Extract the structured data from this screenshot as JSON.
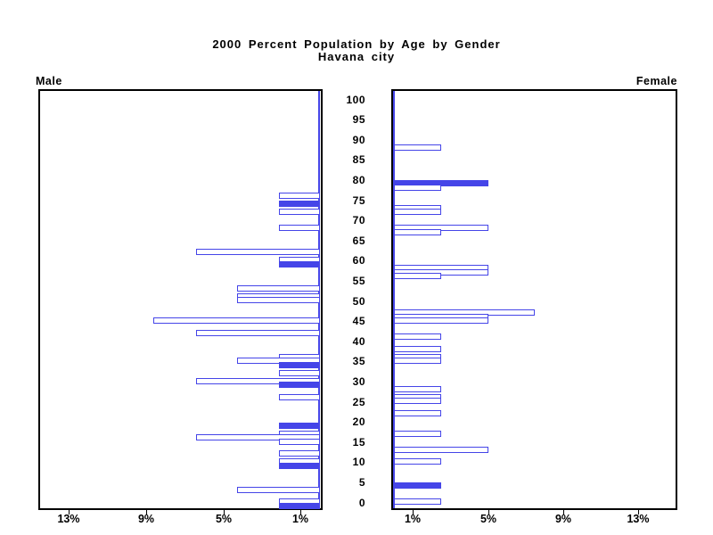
{
  "chart_data": {
    "type": "bar",
    "variant": "population-pyramid",
    "title": "2000 Percent Population by Age by Gender",
    "subtitle": "Havana city",
    "left_panel_label": "Male",
    "right_panel_label": "Female",
    "legend_position": "none",
    "grid": false,
    "colors": {
      "bar_blue": "#4545E8",
      "frame_black": "#000000",
      "background": "#FFFFFF"
    },
    "pct_axis": {
      "unit": "%",
      "xlim": [
        0,
        15
      ],
      "tick_values": [
        1,
        5,
        9,
        13
      ],
      "tick_labels": [
        "1%",
        "5%",
        "9%",
        "13%"
      ],
      "male_direction": "right-to-left",
      "female_direction": "left-to-right"
    },
    "age_axis": {
      "min": 0,
      "max": 100,
      "step": 5,
      "tick_labels": [
        "100",
        "95",
        "90",
        "85",
        "80",
        "75",
        "70",
        "65",
        "60",
        "55",
        "50",
        "45",
        "40",
        "35",
        "30",
        "25",
        "20",
        "15",
        "10",
        "5",
        "0"
      ]
    },
    "male_bars": [
      {
        "age": 77,
        "pct": 2.1,
        "solid": false
      },
      {
        "age": 75,
        "pct": 2.1,
        "solid": true
      },
      {
        "age": 73,
        "pct": 2.1,
        "solid": false
      },
      {
        "age": 69,
        "pct": 2.1,
        "solid": false
      },
      {
        "age": 63,
        "pct": 6.4,
        "solid": false
      },
      {
        "age": 61,
        "pct": 2.1,
        "solid": false
      },
      {
        "age": 60,
        "pct": 2.1,
        "solid": true
      },
      {
        "age": 54,
        "pct": 4.3,
        "solid": false
      },
      {
        "age": 52,
        "pct": 4.3,
        "solid": false
      },
      {
        "age": 51,
        "pct": 4.3,
        "solid": false
      },
      {
        "age": 46,
        "pct": 8.6,
        "solid": false
      },
      {
        "age": 43,
        "pct": 6.4,
        "solid": false
      },
      {
        "age": 37,
        "pct": 2.1,
        "solid": false
      },
      {
        "age": 36,
        "pct": 4.3,
        "solid": false
      },
      {
        "age": 35,
        "pct": 2.1,
        "solid": true
      },
      {
        "age": 33,
        "pct": 2.1,
        "solid": false
      },
      {
        "age": 31,
        "pct": 6.4,
        "solid": false
      },
      {
        "age": 30,
        "pct": 2.1,
        "solid": true
      },
      {
        "age": 27,
        "pct": 2.1,
        "solid": false
      },
      {
        "age": 20,
        "pct": 2.1,
        "solid": true
      },
      {
        "age": 18,
        "pct": 2.1,
        "solid": false
      },
      {
        "age": 17,
        "pct": 6.4,
        "solid": false
      },
      {
        "age": 16,
        "pct": 2.1,
        "solid": false
      },
      {
        "age": 13,
        "pct": 2.1,
        "solid": false
      },
      {
        "age": 11,
        "pct": 2.1,
        "solid": false
      },
      {
        "age": 10,
        "pct": 2.1,
        "solid": true
      },
      {
        "age": 4,
        "pct": 4.3,
        "solid": false
      },
      {
        "age": 1,
        "pct": 2.1,
        "solid": false
      },
      {
        "age": 0,
        "pct": 2.1,
        "solid": true
      }
    ],
    "female_bars": [
      {
        "age": 89,
        "pct": 2.5,
        "solid": false
      },
      {
        "age": 80,
        "pct": 5.0,
        "solid": true
      },
      {
        "age": 79,
        "pct": 2.5,
        "solid": false
      },
      {
        "age": 74,
        "pct": 2.5,
        "solid": false
      },
      {
        "age": 73,
        "pct": 2.5,
        "solid": false
      },
      {
        "age": 69,
        "pct": 5.0,
        "solid": false
      },
      {
        "age": 68,
        "pct": 2.5,
        "solid": false
      },
      {
        "age": 59,
        "pct": 5.0,
        "solid": false
      },
      {
        "age": 58,
        "pct": 5.0,
        "solid": false
      },
      {
        "age": 57,
        "pct": 2.5,
        "solid": false
      },
      {
        "age": 48,
        "pct": 7.5,
        "solid": false
      },
      {
        "age": 47,
        "pct": 5.0,
        "solid": false
      },
      {
        "age": 46,
        "pct": 5.0,
        "solid": false
      },
      {
        "age": 42,
        "pct": 2.5,
        "solid": false
      },
      {
        "age": 39,
        "pct": 2.5,
        "solid": false
      },
      {
        "age": 37,
        "pct": 2.5,
        "solid": false
      },
      {
        "age": 36,
        "pct": 2.5,
        "solid": false
      },
      {
        "age": 29,
        "pct": 2.5,
        "solid": false
      },
      {
        "age": 27,
        "pct": 2.5,
        "solid": false
      },
      {
        "age": 26,
        "pct": 2.5,
        "solid": false
      },
      {
        "age": 23,
        "pct": 2.5,
        "solid": false
      },
      {
        "age": 18,
        "pct": 2.5,
        "solid": false
      },
      {
        "age": 14,
        "pct": 5.0,
        "solid": false
      },
      {
        "age": 11,
        "pct": 2.5,
        "solid": false
      },
      {
        "age": 5,
        "pct": 2.5,
        "solid": true
      },
      {
        "age": 1,
        "pct": 2.5,
        "solid": false
      }
    ]
  }
}
